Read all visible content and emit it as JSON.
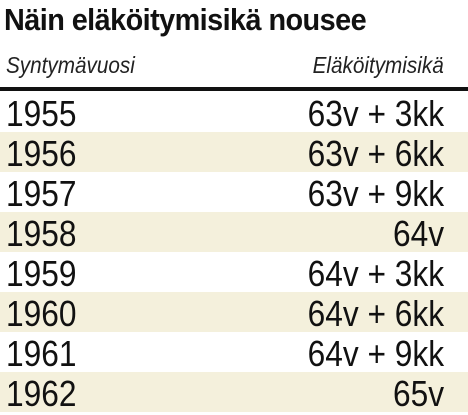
{
  "title": "Näin eläköitymisikä nousee",
  "table": {
    "header": [
      "Syntymävuosi",
      "Eläköitymisikä"
    ],
    "rows": [
      [
        "1955",
        "63v + 3kk"
      ],
      [
        "1956",
        "63v + 6kk"
      ],
      [
        "1957",
        "63v + 9kk"
      ],
      [
        "1958",
        "64v"
      ],
      [
        "1959",
        "64v + 3kk"
      ],
      [
        "1960",
        "64v + 6kk"
      ],
      [
        "1961",
        "64v + 9kk"
      ],
      [
        "1962",
        "65v"
      ]
    ]
  }
}
